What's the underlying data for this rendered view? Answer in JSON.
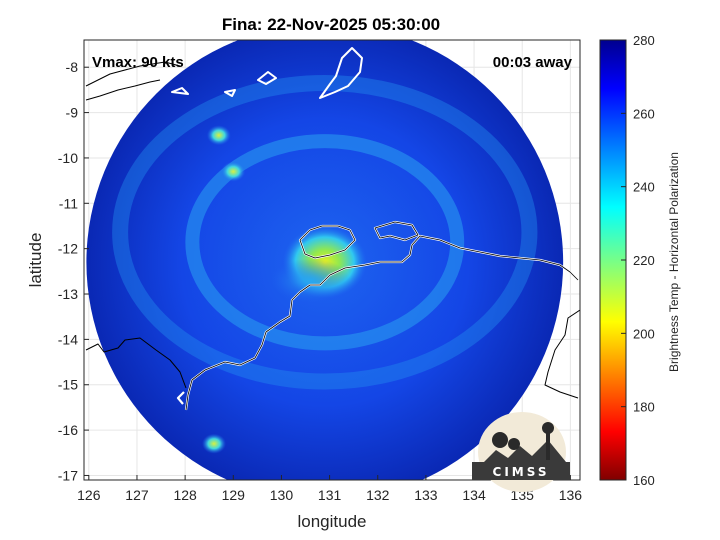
{
  "chart_data": {
    "type": "heatmap",
    "title": "Fina: 22-Nov-2025 05:30:00",
    "xlabel": "longitude",
    "ylabel": "latitude",
    "xlim": [
      125.9,
      136.2
    ],
    "ylim": [
      -17.1,
      -7.4
    ],
    "xticks": [
      "126",
      "127",
      "128",
      "129",
      "130",
      "131",
      "132",
      "133",
      "134",
      "135",
      "136"
    ],
    "yticks": [
      "-8",
      "-9",
      "-10",
      "-11",
      "-12",
      "-13",
      "-14",
      "-15",
      "-16",
      "-17"
    ],
    "grid": true,
    "annotations": {
      "top_left": "Vmax: 90 kts",
      "top_right": "00:03 away"
    },
    "swath": {
      "center_lon": 130.9,
      "center_lat": -12.3,
      "radius_deg": 5.0
    },
    "features": [
      {
        "kind": "eye",
        "lon": 130.9,
        "lat": -12.3,
        "value": 205
      },
      {
        "kind": "band",
        "lon": 130.6,
        "lat": -12.7,
        "value": 220
      },
      {
        "kind": "cell",
        "lon": 128.7,
        "lat": -9.5,
        "value": 225
      },
      {
        "kind": "cell",
        "lon": 129.0,
        "lat": -10.3,
        "value": 230
      },
      {
        "kind": "cell",
        "lon": 128.6,
        "lat": -16.3,
        "value": 235
      }
    ],
    "background_value": 268,
    "colorbar": {
      "label": "Brightness Temp - Horizontal Polarization",
      "range": [
        160,
        280
      ],
      "ticks": [
        "160",
        "180",
        "200",
        "220",
        "240",
        "260",
        "280"
      ]
    }
  },
  "logo": {
    "text": "CIMSS"
  }
}
